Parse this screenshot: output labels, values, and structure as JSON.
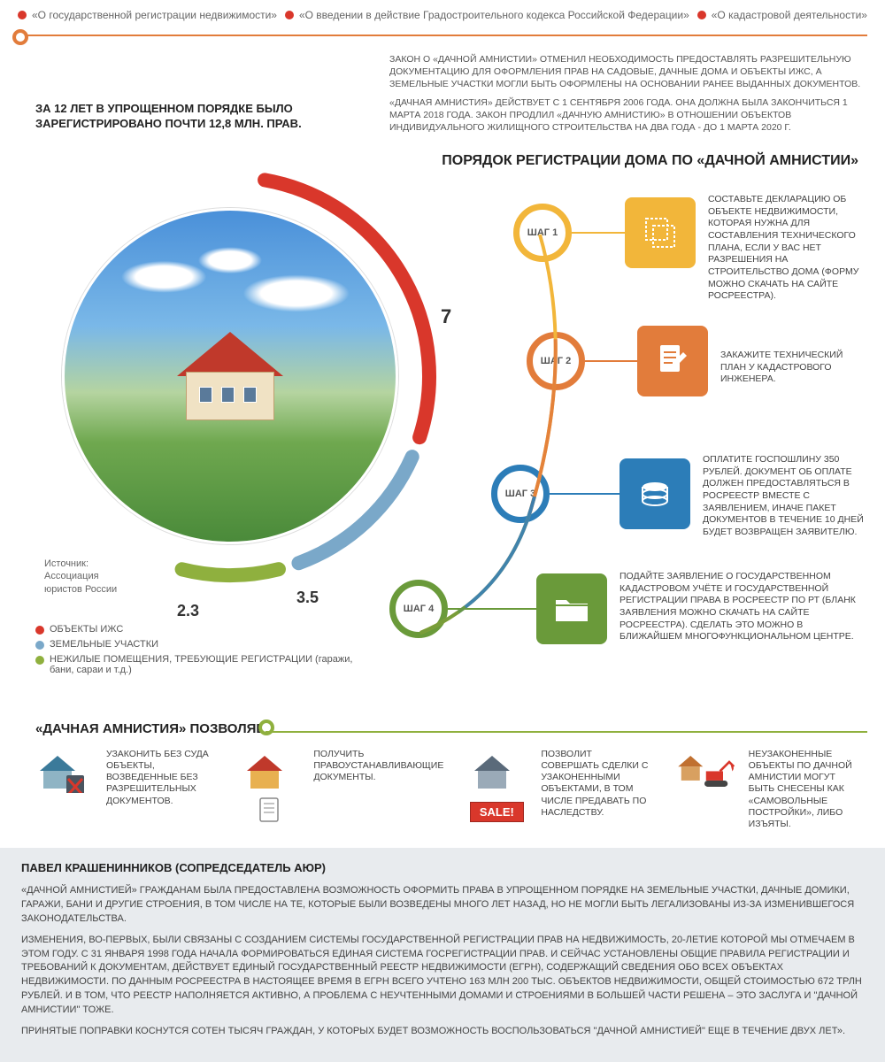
{
  "colors": {
    "red": "#d9372b",
    "orange": "#e27c3b",
    "yellow": "#f2b63a",
    "blue": "#2c7db8",
    "lightblue": "#7aa8c9",
    "green": "#6a9a3a",
    "olive": "#8fb03e",
    "grey": "#9aa0a6"
  },
  "tags": [
    {
      "text": "«О государственной регистрации недвижимости»",
      "color": "#d9372b"
    },
    {
      "text": "«О введении в действие Градостроительного кодекса Российской Федерации»",
      "color": "#d9372b"
    },
    {
      "text": "«О кадастровой деятельности»",
      "color": "#d9372b"
    }
  ],
  "intro": {
    "p1": "ЗАКОН О «ДАЧНОЙ АМНИСТИИ» ОТМЕНИЛ НЕОБХОДИМОСТЬ ПРЕДОСТАВЛЯТЬ РАЗРЕШИТЕЛЬНУЮ ДОКУМЕНТАЦИЮ ДЛЯ ОФОРМЛЕНИЯ ПРАВ НА САДОВЫЕ, ДАЧНЫЕ ДОМА И ОБЪЕКТЫ ИЖС, А ЗЕМЕЛЬНЫЕ УЧАСТКИ МОГЛИ БЫТЬ ОФОРМЛЕНЫ НА ОСНОВАНИИ РАНЕЕ ВЫДАННЫХ ДОКУМЕНТОВ.",
    "p2": "«ДАЧНАЯ АМНИСТИЯ» ДЕЙСТВУЕТ С 1 СЕНТЯБРЯ 2006 ГОДА. ОНА ДОЛЖНА БЫЛА ЗАКОНЧИТЬСЯ 1 МАРТА 2018 ГОДА. ЗАКОН ПРОДЛИЛ «ДАЧНУЮ АМНИСТИЮ» В ОТНОШЕНИИ ОБЪЕКТОВ ИНДИВИДУАЛЬНОГО ЖИЛИЩНОГО СТРОИТЕЛЬСТВА НА ДВА ГОДА - ДО 1 МАРТА 2020 Г."
  },
  "stat": "ЗА 12 ЛЕТ В УПРОЩЕННОМ ПОРЯДКЕ БЫЛО ЗАРЕГИСТРИРОВАНО ПОЧТИ 12,8 МЛН. ПРАВ.",
  "section_title": "ПОРЯДОК РЕГИСТРАЦИИ ДОМА ПО «ДАЧНОЙ АМНИСТИИ»",
  "source": "Источник:\nАссоциация\nюристов России",
  "donut": {
    "segments": [
      {
        "label": "ОБЪЕКТЫ ИЖС",
        "value": 7,
        "color": "#d9372b"
      },
      {
        "label": "ЗЕМЕЛЬНЫЕ УЧАСТКИ",
        "value": 3.5,
        "color": "#7aa8c9"
      },
      {
        "label": "НЕЖИЛЫЕ ПОМЕЩЕНИЯ, ТРЕБУЮЩИЕ РЕГИСТРАЦИИ (гаражи, бани, сараи и т.д.)",
        "value": 2.3,
        "color": "#8fb03e"
      }
    ],
    "stroke_width": 18,
    "radius": 230
  },
  "value_7": "7",
  "value_35": "3.5",
  "value_23": "2.3",
  "steps": [
    {
      "badge": "ШАГ 1",
      "color": "#f2b63a",
      "icon_bg": "#f2b63a",
      "text": "СОСТАВЬТЕ ДЕКЛАРАЦИЮ ОБ ОБЪЕКТЕ НЕДВИЖИМОСТИ, КОТОРАЯ НУЖНА ДЛЯ СОСТАВЛЕНИЯ ТЕХНИЧЕСКОГО ПЛАНА, ЕСЛИ У ВАС НЕТ РАЗРЕШЕНИЯ НА СТРОИТЕЛЬСТВО ДОМА (ФОРМУ МОЖНО СКАЧАТЬ НА САЙТЕ РОСРЕЕСТРА)."
    },
    {
      "badge": "ШАГ 2",
      "color": "#e27c3b",
      "icon_bg": "#e27c3b",
      "text": "ЗАКАЖИТЕ ТЕХНИЧЕСКИЙ ПЛАН У КАДАСТРОВОГО ИНЖЕНЕРА."
    },
    {
      "badge": "ШАГ 3",
      "color": "#2c7db8",
      "icon_bg": "#2c7db8",
      "text": "ОПЛАТИТЕ ГОСПОШЛИНУ 350 РУБЛЕЙ. ДОКУМЕНТ ОБ ОПЛАТЕ ДОЛЖЕН ПРЕДОСТАВЛЯТЬСЯ В РОСРЕЕСТР ВМЕСТЕ С ЗАЯВЛЕНИЕМ, ИНАЧЕ ПАКЕТ ДОКУМЕНТОВ В ТЕЧЕНИЕ 10 ДНЕЙ БУДЕТ ВОЗВРАЩЕН ЗАЯВИТЕЛЮ."
    },
    {
      "badge": "ШАГ 4",
      "color": "#6a9a3a",
      "icon_bg": "#6a9a3a",
      "text": "ПОДАЙТЕ ЗАЯВЛЕНИЕ О ГОСУДАРСТВЕННОМ КАДАСТРОВОМ УЧЁТЕ И ГОСУДАРСТВЕННОЙ РЕГИСТРАЦИИ ПРАВА В РОСРЕЕСТР ПО РТ (БЛАНК ЗАЯВЛЕНИЯ МОЖНО СКАЧАТЬ НА САЙТЕ РОСРЕЕСТРА). СДЕЛАТЬ ЭТО МОЖНО В БЛИЖАЙШЕМ МНОГОФУНКЦИОНАЛЬНОМ ЦЕНТРЕ."
    }
  ],
  "allows_title": "«ДАЧНАЯ АМНИСТИЯ» ПОЗВОЛЯЕТ",
  "allows": [
    {
      "text": "УЗАКОНИТЬ БЕЗ СУДА ОБЪЕКТЫ, ВОЗВЕДЕННЫЕ БЕЗ РАЗРЕШИТЕЛЬНЫХ ДОКУМЕНТОВ."
    },
    {
      "text": "ПОЛУЧИТЬ ПРАВОУСТАНАВЛИВАЮЩИЕ ДОКУМЕНТЫ."
    },
    {
      "text": "ПОЗВОЛИТ СОВЕРШАТЬ СДЕЛКИ С УЗАКОНЕННЫМИ ОБЪЕКТАМИ, В ТОМ ЧИСЛЕ ПРЕДАВАТЬ ПО НАСЛЕДСТВУ.",
      "sale": "SALE!"
    },
    {
      "text": "НЕУЗАКОНЕННЫЕ ОБЪЕКТЫ ПО ДАЧНОЙ АМНИСТИИ МОГУТ БЫТЬ СНЕСЕНЫ КАК «САМОВОЛЬНЫЕ ПОСТРОЙКИ», ЛИБО ИЗЪЯТЫ."
    }
  ],
  "quote": {
    "author": "ПАВЕЛ КРАШЕНИННИКОВ (СОПРЕДСЕДАТЕЛЬ АЮР)",
    "p1": "«ДАЧНОЙ АМНИСТИЕЙ» ГРАЖДАНАМ БЫЛА ПРЕДОСТАВЛЕНА ВОЗМОЖНОСТЬ ОФОРМИТЬ ПРАВА В УПРОЩЕННОМ ПОРЯДКЕ НА ЗЕМЕЛЬНЫЕ УЧАСТКИ, ДАЧНЫЕ ДОМИКИ, ГАРАЖИ, БАНИ И ДРУГИЕ СТРОЕНИЯ, В ТОМ ЧИСЛЕ НА ТЕ, КОТОРЫЕ БЫЛИ ВОЗВЕДЕНЫ МНОГО ЛЕТ НАЗАД, НО НЕ МОГЛИ БЫТЬ ЛЕГАЛИЗОВАНЫ ИЗ-ЗА ИЗМЕНИВШЕГОСЯ ЗАКОНОДАТЕЛЬСТВА.",
    "p2": "ИЗМЕНЕНИЯ, ВО-ПЕРВЫХ, БЫЛИ СВЯЗАНЫ С СОЗДАНИЕМ СИСТЕМЫ ГОСУДАРСТВЕННОЙ РЕГИСТРАЦИИ ПРАВ НА НЕДВИЖИМОСТЬ, 20-ЛЕТИЕ КОТОРОЙ МЫ ОТМЕЧАЕМ В ЭТОМ ГОДУ. С 31 ЯНВАРЯ 1998 ГОДА НАЧАЛА ФОРМИРОВАТЬСЯ ЕДИНАЯ СИСТЕМА ГОСРЕГИСТРАЦИИ ПРАВ. И СЕЙЧАС УСТАНОВЛЕНЫ ОБЩИЕ ПРАВИЛА РЕГИСТРАЦИИ И ТРЕБОВАНИЙ К ДОКУМЕНТАМ, ДЕЙСТВУЕТ ЕДИНЫЙ ГОСУДАРСТВЕННЫЙ РЕЕСТР НЕДВИЖИМОСТИ (ЕГРН), СОДЕРЖАЩИЙ СВЕДЕНИЯ ОБО ВСЕХ ОБЪЕКТАХ НЕДВИЖИМОСТИ. ПО ДАННЫМ РОСРЕЕСТРА В НАСТОЯЩЕЕ ВРЕМЯ В ЕГРН ВСЕГО УЧТЕНО 163 МЛН 200 ТЫС. ОБЪЕКТОВ НЕДВИЖИМОСТИ, ОБЩЕЙ СТОИМОСТЬЮ 672 ТРЛН РУБЛЕЙ. И В ТОМ, ЧТО РЕЕСТР НАПОЛНЯЕТСЯ АКТИВНО, А ПРОБЛЕМА С НЕУЧТЕННЫМИ ДОМАМИ И СТРОЕНИЯМИ В БОЛЬШЕЙ ЧАСТИ РЕШЕНА – ЭТО ЗАСЛУГА И \"ДАЧНОЙ АМНИСТИИ\" ТОЖЕ.",
    "p3": "ПРИНЯТЫЕ ПОПРАВКИ КОСНУТСЯ СОТЕН ТЫСЯЧ ГРАЖДАН, У КОТОРЫХ БУДЕТ ВОЗМОЖНОСТЬ ВОСПОЛЬЗОВАТЬСЯ \"ДАЧНОЙ АМНИСТИЕЙ\" ЕЩЕ В ТЕЧЕНИЕ ДВУХ ЛЕТ»."
  }
}
